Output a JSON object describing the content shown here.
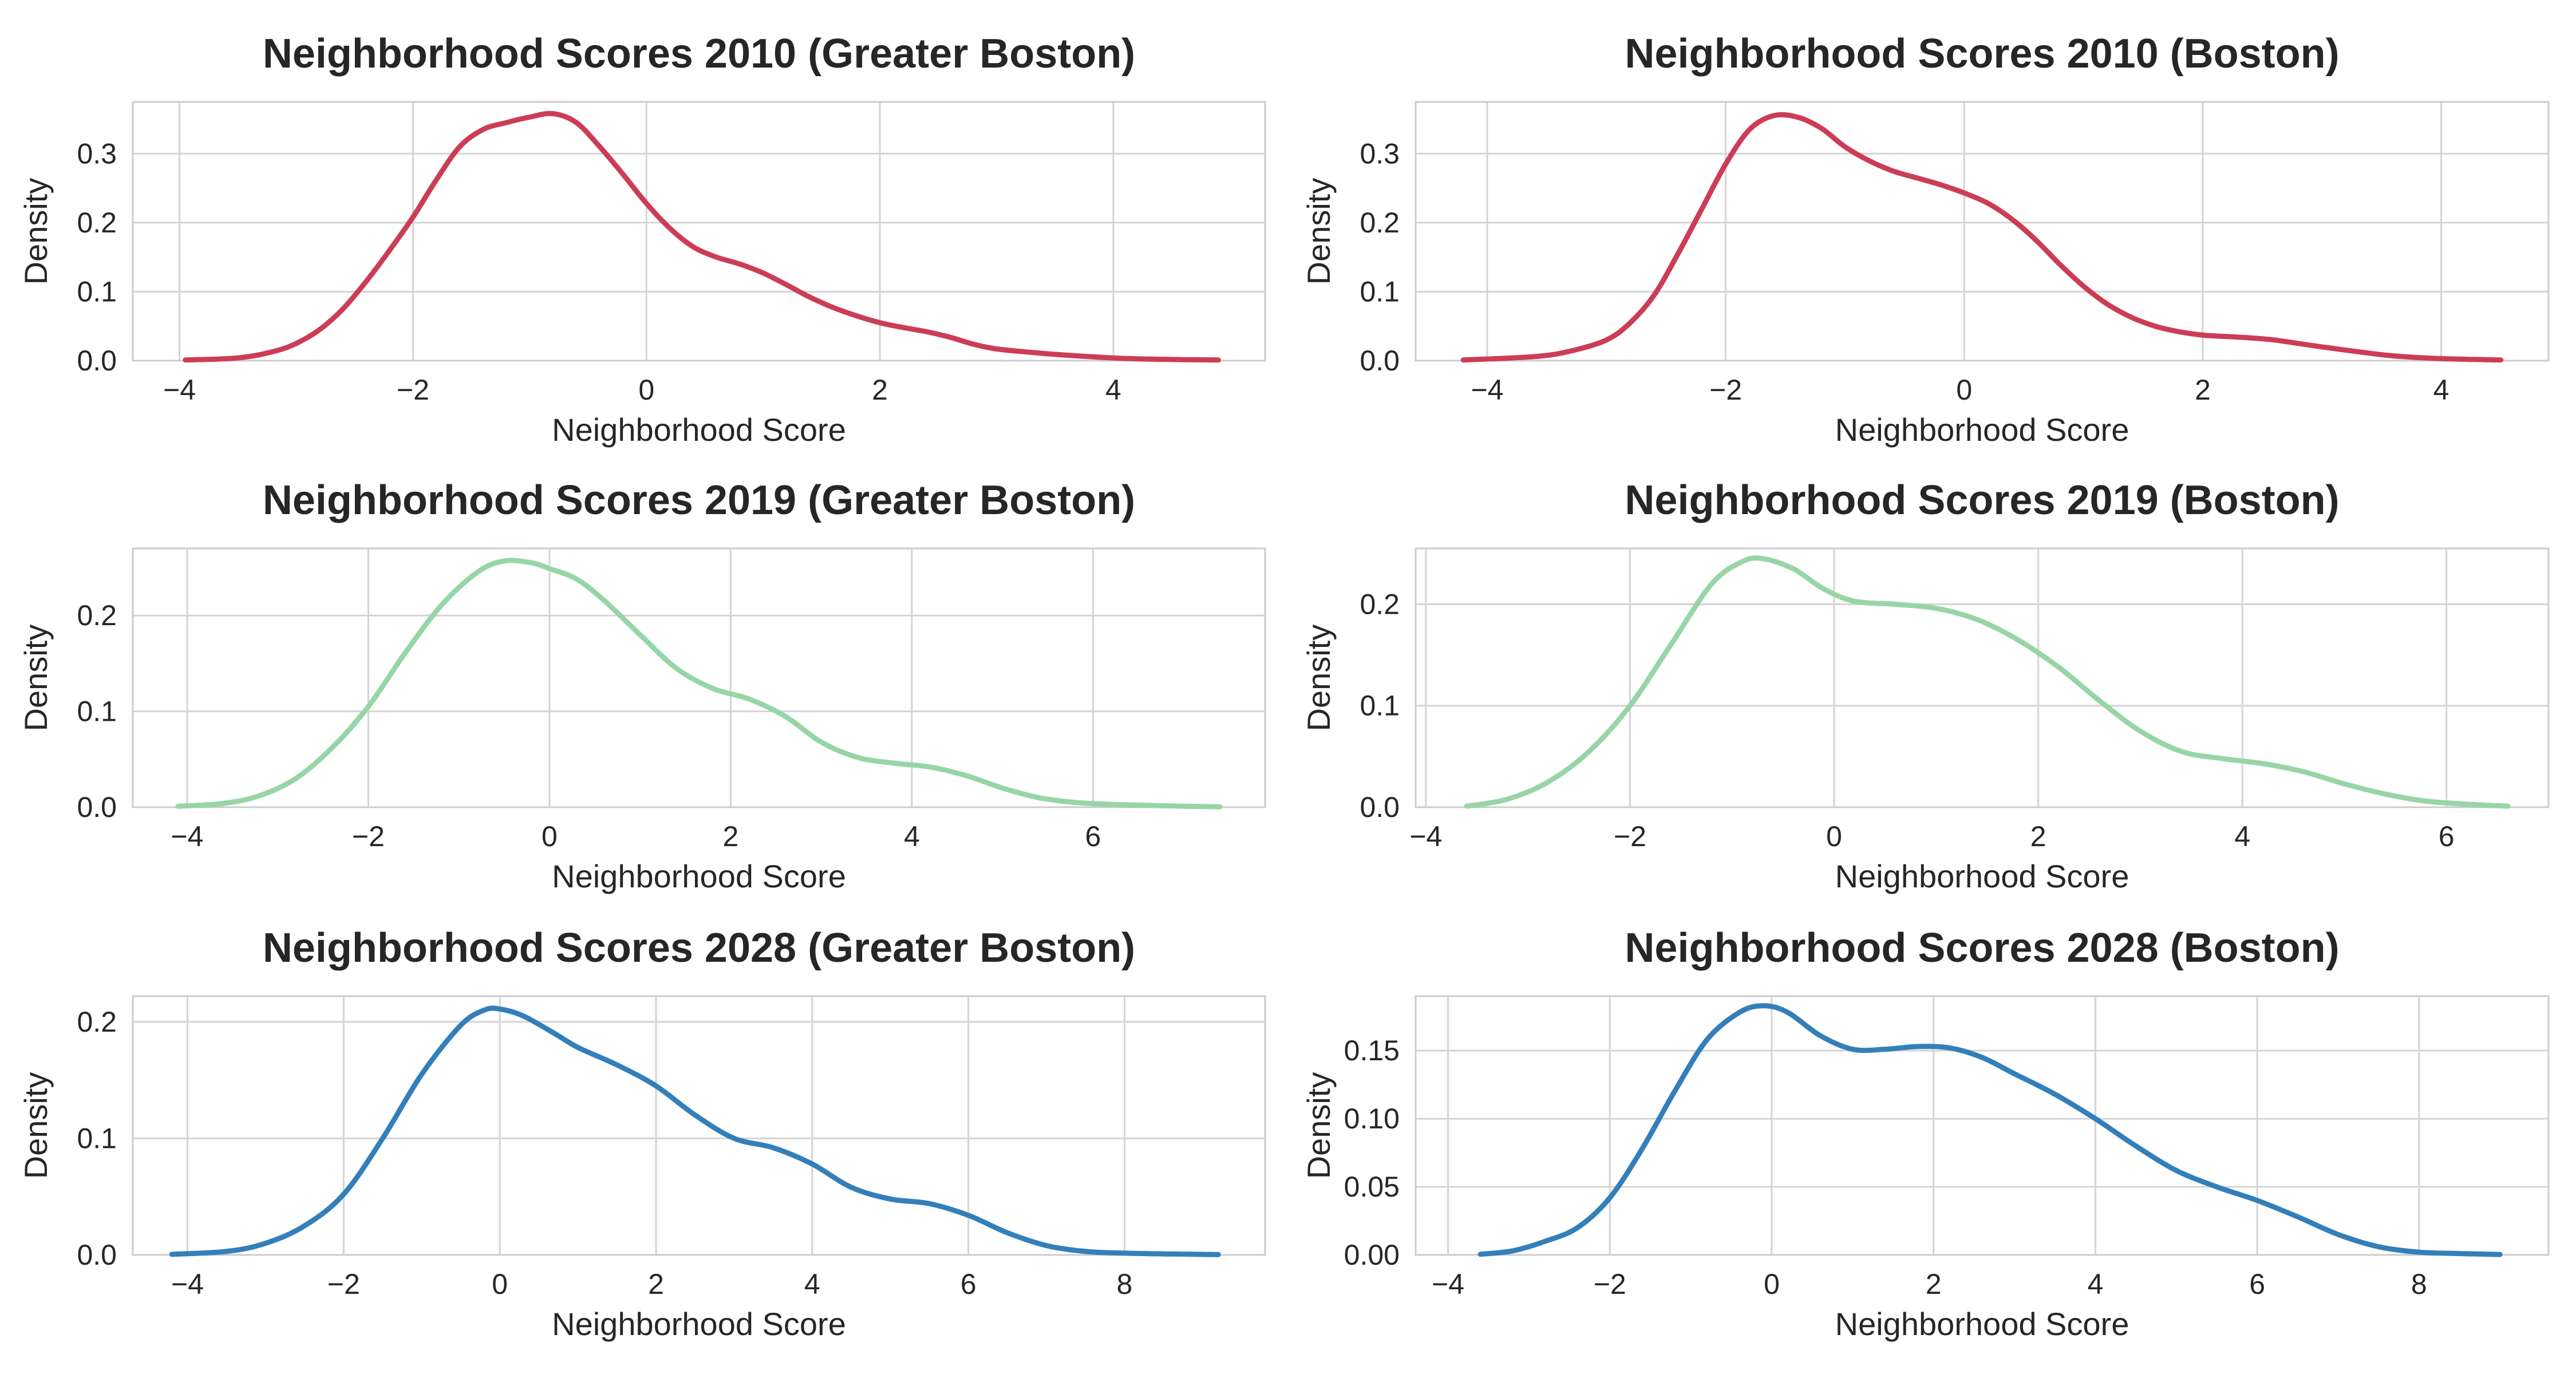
{
  "chart_data": [
    {
      "type": "line",
      "title": "Neighborhood Scores 2010 (Greater Boston)",
      "xlabel": "Neighborhood Score",
      "ylabel": "Density",
      "color": "#cc3d55",
      "xlim": [
        -4.4,
        5.3
      ],
      "ylim": [
        0,
        0.375
      ],
      "xticks": [
        -4,
        -2,
        0,
        2,
        4
      ],
      "yticks": [
        0.0,
        0.1,
        0.2,
        0.3
      ],
      "ytick_labels": [
        "0.0",
        "0.1",
        "0.2",
        "0.3"
      ],
      "x": [
        -3.95,
        -3.5,
        -3.2,
        -3.0,
        -2.8,
        -2.6,
        -2.4,
        -2.2,
        -2.0,
        -1.8,
        -1.6,
        -1.4,
        -1.2,
        -1.0,
        -0.8,
        -0.6,
        -0.4,
        -0.2,
        0.0,
        0.2,
        0.4,
        0.6,
        0.8,
        1.0,
        1.2,
        1.4,
        1.6,
        1.8,
        2.0,
        2.2,
        2.4,
        2.6,
        2.8,
        3.0,
        3.3,
        3.6,
        4.0,
        4.4,
        4.9
      ],
      "y": [
        0.001,
        0.004,
        0.013,
        0.025,
        0.045,
        0.075,
        0.115,
        0.16,
        0.208,
        0.262,
        0.31,
        0.335,
        0.345,
        0.353,
        0.358,
        0.345,
        0.31,
        0.27,
        0.228,
        0.192,
        0.165,
        0.15,
        0.14,
        0.127,
        0.11,
        0.092,
        0.077,
        0.065,
        0.055,
        0.048,
        0.042,
        0.034,
        0.024,
        0.017,
        0.012,
        0.008,
        0.004,
        0.002,
        0.001
      ]
    },
    {
      "type": "line",
      "title": "Neighborhood Scores 2010 (Boston)",
      "xlabel": "Neighborhood Score",
      "ylabel": "Density",
      "color": "#cc3d55",
      "xlim": [
        -4.6,
        4.9
      ],
      "ylim": [
        0,
        0.375
      ],
      "xticks": [
        -4,
        -2,
        0,
        2,
        4
      ],
      "yticks": [
        0.0,
        0.1,
        0.2,
        0.3
      ],
      "ytick_labels": [
        "0.0",
        "0.1",
        "0.2",
        "0.3"
      ],
      "x": [
        -4.2,
        -3.6,
        -3.3,
        -3.0,
        -2.8,
        -2.6,
        -2.4,
        -2.2,
        -2.0,
        -1.8,
        -1.6,
        -1.4,
        -1.2,
        -1.0,
        -0.8,
        -0.6,
        -0.4,
        -0.2,
        0.0,
        0.2,
        0.4,
        0.6,
        0.8,
        1.0,
        1.2,
        1.4,
        1.6,
        1.8,
        2.0,
        2.2,
        2.4,
        2.6,
        2.8,
        3.0,
        3.3,
        3.6,
        4.0,
        4.5
      ],
      "y": [
        0.001,
        0.006,
        0.014,
        0.03,
        0.055,
        0.095,
        0.155,
        0.22,
        0.285,
        0.335,
        0.355,
        0.353,
        0.337,
        0.31,
        0.29,
        0.275,
        0.265,
        0.255,
        0.243,
        0.228,
        0.205,
        0.175,
        0.14,
        0.108,
        0.082,
        0.063,
        0.05,
        0.042,
        0.037,
        0.035,
        0.033,
        0.03,
        0.025,
        0.02,
        0.013,
        0.007,
        0.003,
        0.001
      ]
    },
    {
      "type": "line",
      "title": "Neighborhood Scores 2019 (Greater Boston)",
      "xlabel": "Neighborhood Score",
      "ylabel": "Density",
      "color": "#97d5a6",
      "xlim": [
        -4.6,
        7.9
      ],
      "ylim": [
        0,
        0.27
      ],
      "xticks": [
        -4,
        -2,
        0,
        2,
        4,
        6
      ],
      "yticks": [
        0.0,
        0.1,
        0.2
      ],
      "ytick_labels": [
        "0.0",
        "0.1",
        "0.2"
      ],
      "x": [
        -4.1,
        -3.6,
        -3.2,
        -2.8,
        -2.4,
        -2.0,
        -1.6,
        -1.2,
        -0.8,
        -0.5,
        -0.2,
        0.0,
        0.3,
        0.6,
        1.0,
        1.4,
        1.8,
        2.2,
        2.6,
        3.0,
        3.4,
        3.8,
        4.2,
        4.6,
        5.0,
        5.4,
        5.8,
        6.2,
        6.6,
        7.0,
        7.4
      ],
      "y": [
        0.001,
        0.004,
        0.012,
        0.03,
        0.062,
        0.105,
        0.16,
        0.21,
        0.245,
        0.257,
        0.255,
        0.249,
        0.238,
        0.216,
        0.18,
        0.145,
        0.124,
        0.113,
        0.095,
        0.068,
        0.052,
        0.046,
        0.042,
        0.033,
        0.02,
        0.01,
        0.005,
        0.003,
        0.002,
        0.001,
        0.0005
      ]
    },
    {
      "type": "line",
      "title": "Neighborhood Scores 2019 (Boston)",
      "xlabel": "Neighborhood Score",
      "ylabel": "Density",
      "color": "#97d5a6",
      "xlim": [
        -4.1,
        7.0
      ],
      "ylim": [
        0,
        0.255
      ],
      "xticks": [
        -4,
        -2,
        0,
        2,
        4,
        6
      ],
      "yticks": [
        0.0,
        0.1,
        0.2
      ],
      "ytick_labels": [
        "0.0",
        "0.1",
        "0.2"
      ],
      "x": [
        -3.6,
        -3.2,
        -2.8,
        -2.4,
        -2.0,
        -1.6,
        -1.2,
        -0.9,
        -0.7,
        -0.4,
        -0.1,
        0.2,
        0.6,
        1.0,
        1.4,
        1.8,
        2.2,
        2.6,
        3.0,
        3.4,
        3.8,
        4.2,
        4.6,
        5.0,
        5.4,
        5.8,
        6.2,
        6.6
      ],
      "y": [
        0.001,
        0.008,
        0.025,
        0.055,
        0.1,
        0.16,
        0.22,
        0.242,
        0.245,
        0.235,
        0.215,
        0.203,
        0.2,
        0.196,
        0.185,
        0.165,
        0.138,
        0.105,
        0.075,
        0.055,
        0.048,
        0.043,
        0.035,
        0.023,
        0.013,
        0.006,
        0.003,
        0.001
      ]
    },
    {
      "type": "line",
      "title": "Neighborhood Scores 2028 (Greater Boston)",
      "xlabel": "Neighborhood Score",
      "ylabel": "Density",
      "color": "#337fba",
      "xlim": [
        -4.7,
        9.8
      ],
      "ylim": [
        0,
        0.222
      ],
      "xticks": [
        -4,
        -2,
        0,
        2,
        4,
        6,
        8
      ],
      "yticks": [
        0.0,
        0.1,
        0.2
      ],
      "ytick_labels": [
        "0.0",
        "0.1",
        "0.2"
      ],
      "x": [
        -4.2,
        -3.5,
        -3.0,
        -2.5,
        -2.0,
        -1.5,
        -1.0,
        -0.5,
        -0.2,
        0.0,
        0.3,
        0.7,
        1.0,
        1.5,
        2.0,
        2.5,
        3.0,
        3.5,
        4.0,
        4.5,
        5.0,
        5.5,
        6.0,
        6.5,
        7.0,
        7.5,
        8.0,
        8.6,
        9.2
      ],
      "y": [
        0.0005,
        0.003,
        0.01,
        0.025,
        0.052,
        0.1,
        0.155,
        0.197,
        0.21,
        0.211,
        0.205,
        0.19,
        0.178,
        0.163,
        0.145,
        0.12,
        0.1,
        0.092,
        0.078,
        0.058,
        0.048,
        0.044,
        0.034,
        0.019,
        0.008,
        0.003,
        0.0015,
        0.0008,
        0.0003
      ]
    },
    {
      "type": "line",
      "title": "Neighborhood Scores 2028 (Boston)",
      "xlabel": "Neighborhood Score",
      "ylabel": "Density",
      "color": "#337fba",
      "xlim": [
        -4.4,
        9.6
      ],
      "ylim": [
        0,
        0.19
      ],
      "xticks": [
        -4,
        -2,
        0,
        2,
        4,
        6,
        8
      ],
      "yticks": [
        0.0,
        0.05,
        0.1,
        0.15
      ],
      "ytick_labels": [
        "0.00",
        "0.05",
        "0.10",
        "0.15"
      ],
      "x": [
        -3.6,
        -3.2,
        -2.8,
        -2.4,
        -2.0,
        -1.6,
        -1.2,
        -0.8,
        -0.4,
        -0.1,
        0.2,
        0.6,
        1.0,
        1.4,
        1.8,
        2.2,
        2.6,
        3.0,
        3.5,
        4.0,
        4.5,
        5.0,
        5.5,
        6.0,
        6.5,
        7.0,
        7.5,
        8.0,
        8.5,
        9.0
      ],
      "y": [
        0.0005,
        0.003,
        0.01,
        0.02,
        0.042,
        0.078,
        0.12,
        0.158,
        0.178,
        0.183,
        0.178,
        0.161,
        0.151,
        0.151,
        0.153,
        0.152,
        0.145,
        0.133,
        0.118,
        0.1,
        0.08,
        0.062,
        0.05,
        0.04,
        0.028,
        0.015,
        0.006,
        0.002,
        0.001,
        0.0003
      ]
    }
  ]
}
